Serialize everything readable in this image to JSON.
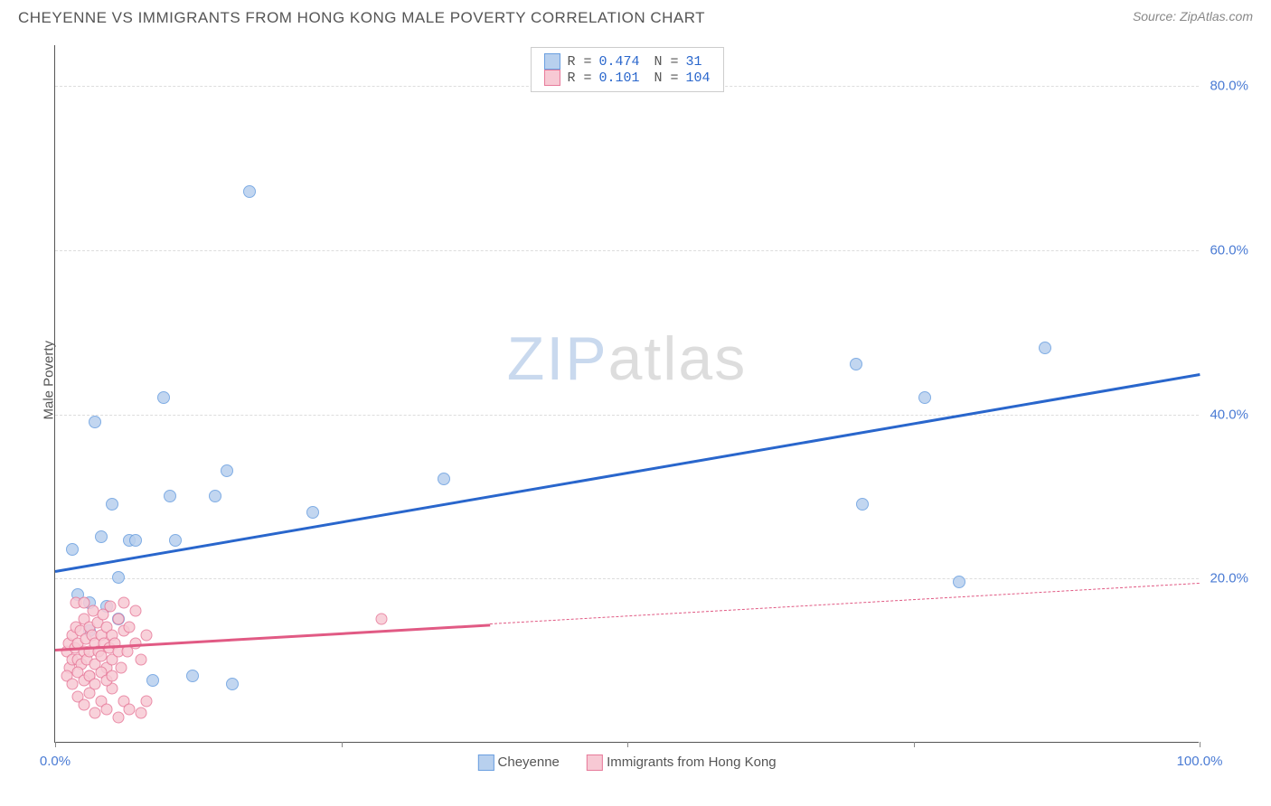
{
  "title": "CHEYENNE VS IMMIGRANTS FROM HONG KONG MALE POVERTY CORRELATION CHART",
  "source_label": "Source: ZipAtlas.com",
  "ylabel": "Male Poverty",
  "watermark": {
    "pre": "ZIP",
    "post": "atlas",
    "color_pre": "#c9d9ee",
    "color_post": "#dddddd"
  },
  "chart": {
    "type": "scatter",
    "xlim": [
      0,
      100
    ],
    "ylim": [
      0,
      85
    ],
    "x_ticks": [
      0,
      25,
      50,
      75,
      100
    ],
    "x_tick_labels": [
      "0.0%",
      "",
      "",
      "",
      "100.0%"
    ],
    "y_gridlines": [
      20,
      40,
      60,
      80
    ],
    "y_tick_labels": [
      "20.0%",
      "40.0%",
      "60.0%",
      "80.0%"
    ],
    "y_tick_color": "#4a7bd4",
    "x_tick_color": "#4a7bd4",
    "grid_color": "#dddddd",
    "axis_color": "#555555",
    "background_color": "#ffffff",
    "series": [
      {
        "name": "Cheyenne",
        "color_fill": "#b8d0ee",
        "color_stroke": "#6a9fe0",
        "marker_size": 14,
        "R": "0.474",
        "N": "31",
        "trend": {
          "x1": 0,
          "y1": 21,
          "x2": 100,
          "y2": 45,
          "color": "#2966cc",
          "width": 3,
          "dash_after_x": null
        },
        "points": [
          [
            1.5,
            23.5
          ],
          [
            2,
            18
          ],
          [
            3,
            17
          ],
          [
            3,
            13.5
          ],
          [
            3.5,
            39
          ],
          [
            4,
            25
          ],
          [
            4.5,
            16.5
          ],
          [
            5,
            29
          ],
          [
            5.5,
            15
          ],
          [
            5.5,
            20
          ],
          [
            6.5,
            24.5
          ],
          [
            7,
            24.5
          ],
          [
            8.5,
            7.5
          ],
          [
            9.5,
            42
          ],
          [
            10,
            30
          ],
          [
            10.5,
            24.5
          ],
          [
            12,
            8
          ],
          [
            14,
            30
          ],
          [
            15,
            33
          ],
          [
            15.5,
            7
          ],
          [
            17,
            67
          ],
          [
            22.5,
            28
          ],
          [
            34,
            32
          ],
          [
            70.5,
            29
          ],
          [
            70,
            46
          ],
          [
            76,
            42
          ],
          [
            79,
            19.5
          ],
          [
            86.5,
            48
          ]
        ]
      },
      {
        "name": "Immigrants from Hong Kong",
        "color_fill": "#f7c9d4",
        "color_stroke": "#e77a9a",
        "marker_size": 13,
        "R": "0.101",
        "N": "104",
        "trend": {
          "x1": 0,
          "y1": 11.5,
          "x2": 100,
          "y2": 19.5,
          "color": "#e15a84",
          "width": 2.5,
          "dash_after_x": 38
        },
        "points": [
          [
            1,
            11
          ],
          [
            1.2,
            12
          ],
          [
            1.3,
            9
          ],
          [
            1.5,
            13
          ],
          [
            1.5,
            10
          ],
          [
            1.7,
            11.5
          ],
          [
            1.8,
            14
          ],
          [
            2,
            12
          ],
          [
            2,
            10
          ],
          [
            2.2,
            13.5
          ],
          [
            2.3,
            9.5
          ],
          [
            2.5,
            11
          ],
          [
            2.5,
            15
          ],
          [
            2.7,
            12.5
          ],
          [
            2.8,
            10
          ],
          [
            3,
            14
          ],
          [
            3,
            11
          ],
          [
            3,
            8
          ],
          [
            3.2,
            13
          ],
          [
            3.3,
            16
          ],
          [
            3.5,
            12
          ],
          [
            3.5,
            9.5
          ],
          [
            3.7,
            14.5
          ],
          [
            3.8,
            11
          ],
          [
            4,
            13
          ],
          [
            4,
            10.5
          ],
          [
            4.2,
            15.5
          ],
          [
            4.3,
            12
          ],
          [
            4.5,
            9
          ],
          [
            4.5,
            14
          ],
          [
            4.7,
            11.5
          ],
          [
            4.8,
            16.5
          ],
          [
            5,
            13
          ],
          [
            5,
            10
          ],
          [
            5.2,
            12
          ],
          [
            5.5,
            15
          ],
          [
            5.5,
            11
          ],
          [
            5.8,
            9
          ],
          [
            6,
            13.5
          ],
          [
            6,
            17
          ],
          [
            6.3,
            11
          ],
          [
            6.5,
            14
          ],
          [
            7,
            12
          ],
          [
            7,
            16
          ],
          [
            7.5,
            10
          ],
          [
            8,
            13
          ],
          [
            2,
            5.5
          ],
          [
            2.5,
            4.5
          ],
          [
            3,
            6
          ],
          [
            3.5,
            3.5
          ],
          [
            4,
            5
          ],
          [
            4.5,
            4
          ],
          [
            5,
            6.5
          ],
          [
            5.5,
            3
          ],
          [
            6,
            5
          ],
          [
            6.5,
            4
          ],
          [
            7.5,
            3.5
          ],
          [
            8,
            5
          ],
          [
            1,
            8
          ],
          [
            1.5,
            7
          ],
          [
            2,
            8.5
          ],
          [
            2.5,
            7.5
          ],
          [
            3,
            8
          ],
          [
            3.5,
            7
          ],
          [
            4,
            8.5
          ],
          [
            4.5,
            7.5
          ],
          [
            5,
            8
          ],
          [
            1.8,
            17
          ],
          [
            2.5,
            17
          ],
          [
            28.5,
            15
          ]
        ]
      }
    ]
  },
  "legend_top": {
    "rows": [
      {
        "swatch_fill": "#b8d0ee",
        "swatch_stroke": "#6a9fe0",
        "r_label": "R =",
        "r_val": "0.474",
        "n_label": "N =",
        "n_val": " 31"
      },
      {
        "swatch_fill": "#f7c9d4",
        "swatch_stroke": "#e77a9a",
        "r_label": "R =",
        "r_val": " 0.101",
        "n_label": "N =",
        "n_val": "104"
      }
    ]
  },
  "legend_bottom": [
    {
      "swatch_fill": "#b8d0ee",
      "swatch_stroke": "#6a9fe0",
      "label": "Cheyenne"
    },
    {
      "swatch_fill": "#f7c9d4",
      "swatch_stroke": "#e77a9a",
      "label": "Immigrants from Hong Kong"
    }
  ]
}
